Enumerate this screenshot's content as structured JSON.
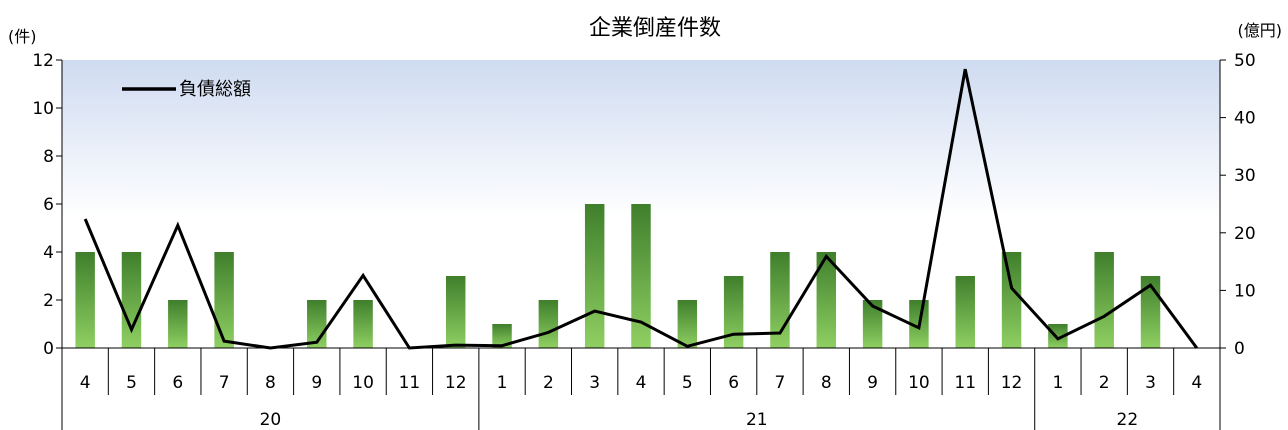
{
  "chart_data": {
    "type": "bar+line",
    "title": "企業倒産件数",
    "y_left_label": "(件)",
    "y_right_label": "(億円)",
    "ylim_left": [
      0,
      12
    ],
    "ylim_right": [
      0,
      50
    ],
    "yticks_left": [
      "0",
      "2",
      "4",
      "6",
      "8",
      "10",
      "12"
    ],
    "yticks_right": [
      "0",
      "10",
      "20",
      "30",
      "40",
      "50"
    ],
    "months": [
      "4",
      "5",
      "6",
      "7",
      "8",
      "9",
      "10",
      "11",
      "12",
      "1",
      "2",
      "3",
      "4",
      "5",
      "6",
      "7",
      "8",
      "9",
      "10",
      "11",
      "12",
      "1",
      "2",
      "3",
      "4"
    ],
    "year_groups": [
      {
        "label": "20",
        "span": 9
      },
      {
        "label": "21",
        "span": 12
      },
      {
        "label": "22",
        "span": 4
      }
    ],
    "series": [
      {
        "kind": "bar",
        "axis": "left",
        "values": [
          4,
          4,
          2,
          4,
          0,
          2,
          2,
          0,
          3,
          1,
          2,
          6,
          6,
          2,
          3,
          4,
          4,
          2,
          2,
          3,
          4,
          1,
          4,
          3,
          0
        ]
      },
      {
        "kind": "line",
        "axis": "right",
        "name": "負債総額",
        "values": [
          22.4,
          3.2,
          21.3,
          1.2,
          0,
          1,
          12.6,
          0,
          0.5,
          0.4,
          2.7,
          6.4,
          4.5,
          0.3,
          2.4,
          2.6,
          15.9,
          7.3,
          3.5,
          48.4,
          10.4,
          1.6,
          5.5,
          10.9,
          0
        ]
      }
    ],
    "legend_position": "top-left"
  }
}
